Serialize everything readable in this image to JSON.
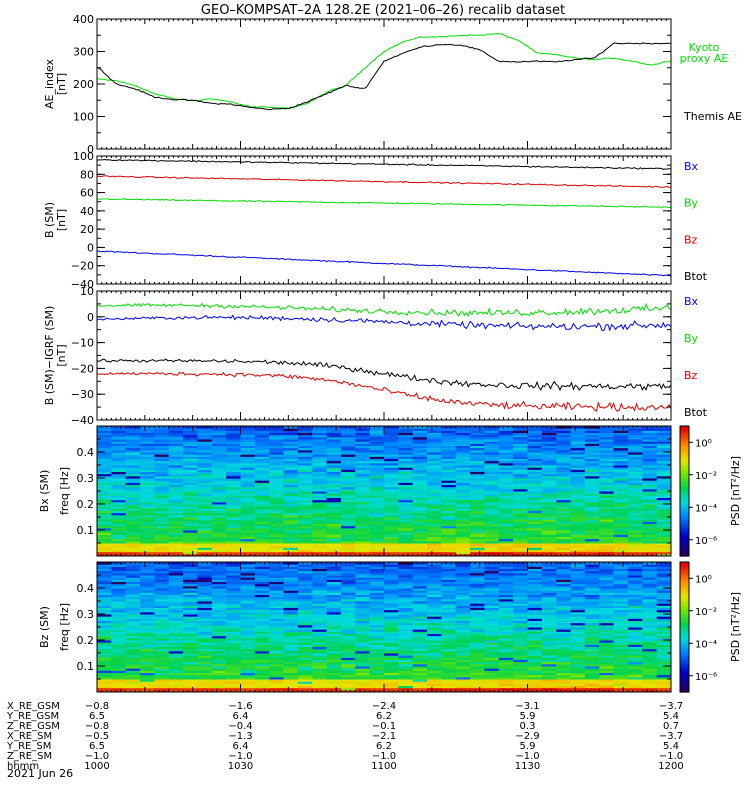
{
  "title": "GEO–KOMPSAT–2A 128.2E (2021–06–26) recalib dataset",
  "chart_data": [
    {
      "type": "line",
      "panel": "ae-index",
      "ylabel": "AE_index",
      "yunit": "[nT]",
      "ylim": [
        0,
        400
      ],
      "yticks": [
        "0",
        "100",
        "200",
        "300",
        "400"
      ],
      "xlim": [
        "10:00",
        "12:00"
      ],
      "series": [
        {
          "name": "Kyoto\nproxy AE",
          "color": "#00dd00",
          "x": [
            "10:00",
            "10:04",
            "10:08",
            "10:12",
            "10:16",
            "10:20",
            "10:24",
            "10:28",
            "10:32",
            "10:36",
            "10:40",
            "10:44",
            "10:48",
            "10:52",
            "10:56",
            "11:00",
            "11:04",
            "11:08",
            "11:12",
            "11:16",
            "11:20",
            "11:24",
            "11:28",
            "11:32",
            "11:36",
            "11:40",
            "11:44",
            "11:48",
            "11:52",
            "11:56",
            "12:00"
          ],
          "y": [
            215,
            210,
            195,
            170,
            155,
            148,
            155,
            145,
            130,
            128,
            125,
            140,
            175,
            195,
            250,
            300,
            330,
            345,
            345,
            350,
            350,
            355,
            335,
            295,
            290,
            280,
            275,
            280,
            270,
            258,
            272
          ]
        },
        {
          "name": "Themis AE",
          "color": "#000000",
          "x": [
            "10:00",
            "10:04",
            "10:08",
            "10:12",
            "10:16",
            "10:20",
            "10:24",
            "10:28",
            "10:32",
            "10:36",
            "10:40",
            "10:44",
            "10:48",
            "10:52",
            "10:56",
            "11:00",
            "11:04",
            "11:08",
            "11:12",
            "11:16",
            "11:20",
            "11:24",
            "11:28",
            "11:32",
            "11:36",
            "11:40",
            "11:44",
            "11:48",
            "11:52",
            "11:56",
            "12:00"
          ],
          "y": [
            255,
            200,
            185,
            160,
            152,
            150,
            140,
            138,
            128,
            122,
            125,
            145,
            170,
            195,
            185,
            270,
            295,
            315,
            322,
            320,
            305,
            270,
            268,
            270,
            268,
            275,
            280,
            325,
            325,
            325,
            325
          ]
        }
      ]
    },
    {
      "type": "line",
      "panel": "b-sm",
      "ylabel": "B (SM)",
      "yunit": "[nT]",
      "ylim": [
        -40,
        100
      ],
      "yticks": [
        "−40",
        "−20",
        "0",
        "20",
        "40",
        "60",
        "80",
        "100"
      ],
      "xlim": [
        "10:00",
        "12:00"
      ],
      "series": [
        {
          "name": "Bx",
          "color": "#0000ff",
          "y_start": -4,
          "y_end": -31
        },
        {
          "name": "By",
          "color": "#00dd00",
          "y_start": 53,
          "y_end": 44
        },
        {
          "name": "Bz",
          "color": "#dd0000",
          "y_start": 78,
          "y_end": 66
        },
        {
          "name": "Btot",
          "color": "#000000",
          "y_start": 96,
          "y_end": 86
        }
      ]
    },
    {
      "type": "line",
      "panel": "b-minus-igrf",
      "ylabel": "B (SM)−IGRF (SM)",
      "yunit": "[nT]",
      "ylim": [
        -40,
        10
      ],
      "yticks": [
        "−40",
        "−30",
        "−20",
        "−10",
        "0",
        "10"
      ],
      "xlim": [
        "10:00",
        "12:00"
      ],
      "series": [
        {
          "name": "Bx",
          "color": "#0000ff",
          "y_start": -1,
          "y_end": -3
        },
        {
          "name": "By",
          "color": "#00dd00",
          "y_start": 3,
          "y_end": 3
        },
        {
          "name": "Bz",
          "color": "#dd0000",
          "y_start": -22,
          "y_end": -35
        },
        {
          "name": "Btot",
          "color": "#000000",
          "y_start": -17,
          "y_end": -27
        }
      ]
    },
    {
      "type": "heatmap",
      "panel": "bx-spectrogram",
      "ylabel": "Bx (SM)",
      "yunit": "freq [Hz]",
      "ylim": [
        0,
        0.5
      ],
      "yticks": [
        "0.1",
        "0.2",
        "0.3",
        "0.4"
      ],
      "colorbar_label": "PSD [nT²/Hz]",
      "colorbar_ticks": [
        "10⁰",
        "10⁻²",
        "10⁻⁴",
        "10⁻⁶"
      ],
      "log10_psd_range": [
        -7,
        1
      ]
    },
    {
      "type": "heatmap",
      "panel": "bz-spectrogram",
      "ylabel": "Bz (SM)",
      "yunit": "freq [Hz]",
      "ylim": [
        0,
        0.5
      ],
      "yticks": [
        "0.1",
        "0.2",
        "0.3",
        "0.4"
      ],
      "colorbar_label": "PSD [nT²/Hz]",
      "colorbar_ticks": [
        "10⁰",
        "10⁻²",
        "10⁻⁴",
        "10⁻⁶"
      ],
      "log10_psd_range": [
        -7,
        1
      ]
    }
  ],
  "ephemeris": {
    "rows": [
      {
        "label": "X_RE_GSM",
        "values": [
          "−0.8",
          "−1.6",
          "−2.4",
          "−3.1",
          "−3.7"
        ]
      },
      {
        "label": "Y_RE_GSM",
        "values": [
          "6.5",
          "6.4",
          "6.2",
          "5.9",
          "5.4"
        ]
      },
      {
        "label": "Z_RE_GSM",
        "values": [
          "−0.8",
          "−0.4",
          "−0.1",
          "0.3",
          "0.7"
        ]
      },
      {
        "label": "X_RE_SM",
        "values": [
          "−0.5",
          "−1.3",
          "−2.1",
          "−2.9",
          "−3.7"
        ]
      },
      {
        "label": "Y_RE_SM",
        "values": [
          "6.5",
          "6.4",
          "6.2",
          "5.9",
          "5.4"
        ]
      },
      {
        "label": "Z_RE_SM",
        "values": [
          "−1.0",
          "−1.0",
          "−1.0",
          "−1.0",
          "−1.0"
        ]
      },
      {
        "label": "hhmm",
        "values": [
          "1000",
          "1030",
          "1100",
          "1130",
          "1200"
        ]
      }
    ],
    "date": "2021 Jun 26"
  }
}
